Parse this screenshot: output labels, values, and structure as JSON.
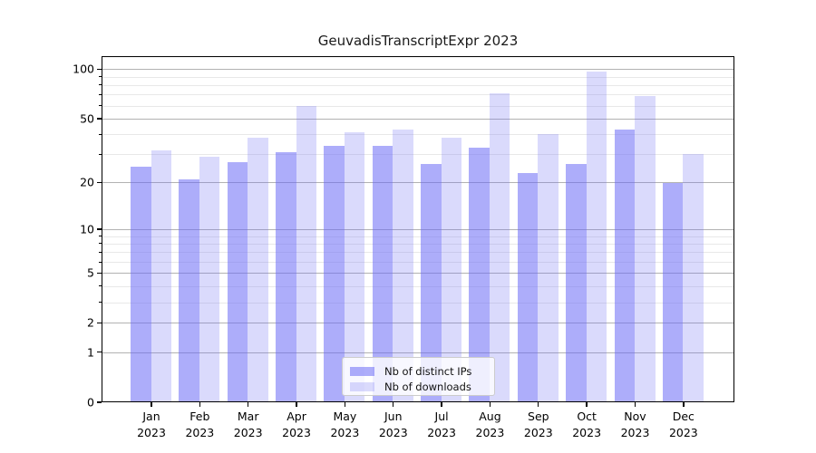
{
  "chart_data": {
    "type": "bar",
    "title": "GeuvadisTranscriptExpr 2023",
    "categories": [
      "Jan 2023",
      "Feb 2023",
      "Mar 2023",
      "Apr 2023",
      "May 2023",
      "Jun 2023",
      "Jul 2023",
      "Aug 2023",
      "Sep 2023",
      "Oct 2023",
      "Nov 2023",
      "Dec 2023"
    ],
    "series": [
      {
        "name": "Nb of distinct IPs",
        "color": "rgba(106,106,245,0.55)",
        "values": [
          25,
          21,
          27,
          31,
          34,
          34,
          26,
          33,
          23,
          26,
          43,
          20
        ]
      },
      {
        "name": "Nb of downloads",
        "color": "rgba(106,106,245,0.25)",
        "values": [
          32,
          29,
          38,
          60,
          41,
          43,
          38,
          71,
          40,
          97,
          69,
          30
        ]
      }
    ],
    "y_scale": "log1p",
    "y_ticks": [
      0,
      1,
      2,
      5,
      10,
      20,
      50,
      100
    ],
    "y_minor_ticks": [
      3,
      4,
      6,
      7,
      8,
      9,
      30,
      40,
      60,
      70,
      80,
      90
    ],
    "ylim": [
      0,
      120
    ],
    "grid": "on",
    "legend_position": "lower center",
    "xlabel": "",
    "ylabel": ""
  },
  "colors": {
    "bar_distinct_ips": "rgba(106,106,245,0.55)",
    "bar_downloads": "rgba(106,106,245,0.25)",
    "grid_major": "#b2b2b2",
    "grid_minor": "#e8e8e8",
    "axis": "#000000",
    "background": "#ffffff"
  }
}
